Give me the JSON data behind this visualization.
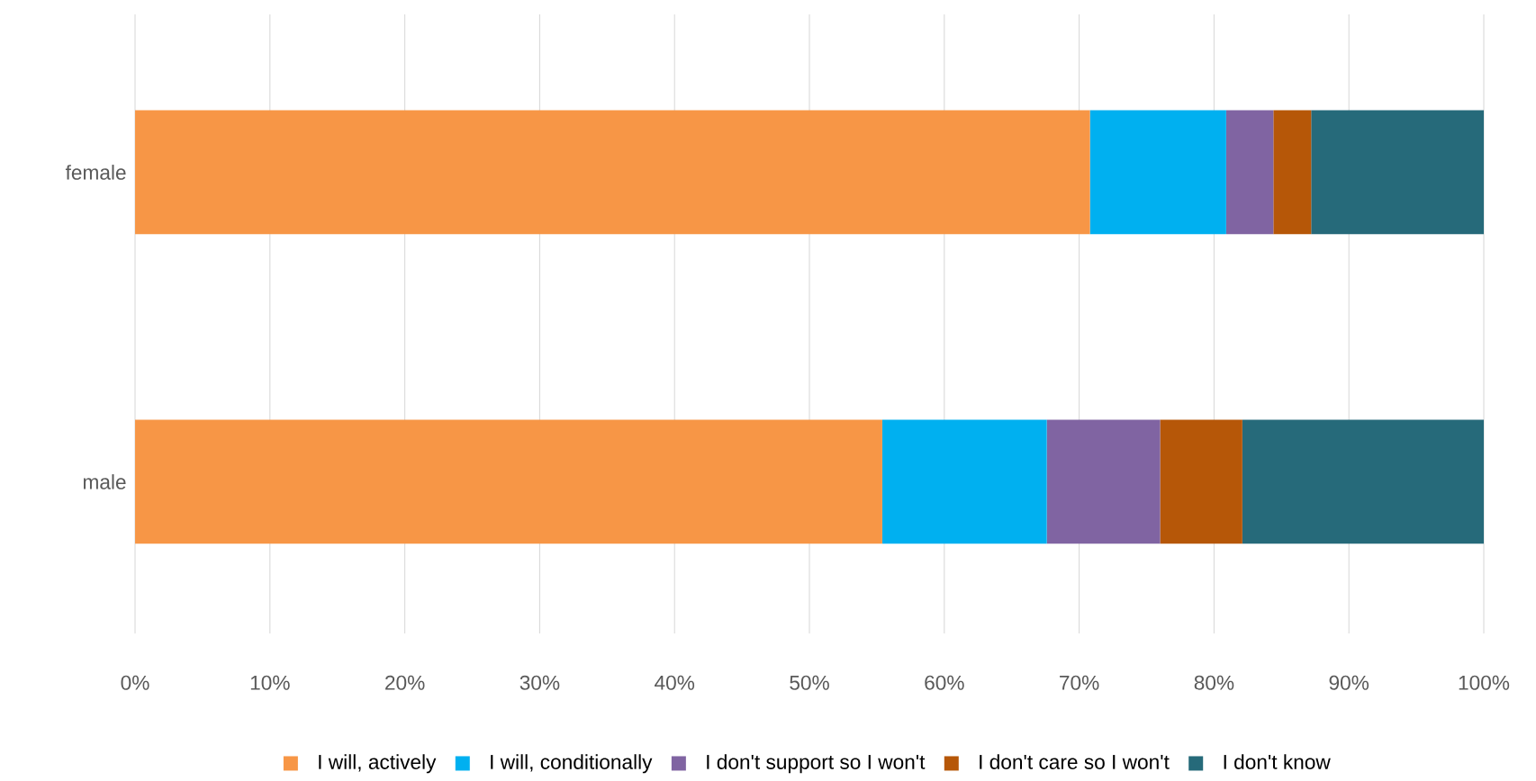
{
  "chart_data": {
    "type": "bar",
    "orientation": "horizontal",
    "stacked": true,
    "categories": [
      "female",
      "male"
    ],
    "series": [
      {
        "name": "I will, actively",
        "color": "#f79646",
        "values": [
          70.8,
          55.4
        ]
      },
      {
        "name": "I will, conditionally",
        "color": "#00b0f0",
        "values": [
          10.1,
          12.2
        ]
      },
      {
        "name": "I don't support so I won't",
        "color": "#8064a2",
        "values": [
          3.5,
          8.4
        ]
      },
      {
        "name": "I don't care so I won't",
        "color": "#b65708",
        "values": [
          2.8,
          6.1
        ]
      },
      {
        "name": "I don't know",
        "color": "#266a7a",
        "values": [
          12.8,
          17.9
        ]
      }
    ],
    "xlim": [
      0,
      100
    ],
    "xticks": [
      {
        "value": 0,
        "label": "0%"
      },
      {
        "value": 10,
        "label": "10%"
      },
      {
        "value": 20,
        "label": "20%"
      },
      {
        "value": 30,
        "label": "30%"
      },
      {
        "value": 40,
        "label": "40%"
      },
      {
        "value": 50,
        "label": "50%"
      },
      {
        "value": 60,
        "label": "60%"
      },
      {
        "value": 70,
        "label": "70%"
      },
      {
        "value": 80,
        "label": "80%"
      },
      {
        "value": 90,
        "label": "90%"
      },
      {
        "value": 100,
        "label": "100%"
      }
    ],
    "grid": "x",
    "legend": "bottom",
    "marker": "square"
  }
}
